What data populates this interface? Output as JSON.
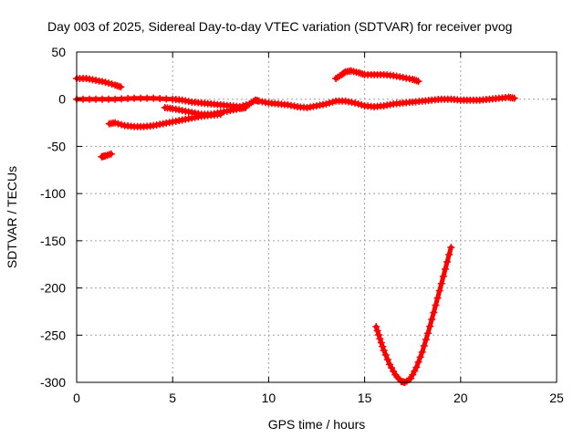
{
  "chart_data": {
    "type": "scatter",
    "title": "Day 003 of 2025, Sidereal Day-to-day VTEC variation (SDTVAR) for receiver pvog",
    "xlabel": "GPS time / hours",
    "ylabel": "SDTVAR / TECUs",
    "xlim": [
      0,
      25
    ],
    "ylim": [
      -300,
      50
    ],
    "xticks": [
      0,
      5,
      10,
      15,
      20,
      25
    ],
    "yticks": [
      50,
      0,
      -50,
      -100,
      -150,
      -200,
      -250,
      -300
    ],
    "grid": true,
    "marker": "plus",
    "colors": {
      "points": "#ff0000",
      "grid": "#a0a0a0",
      "axes": "#000000"
    },
    "segments": [
      [
        [
          0.0,
          22
        ],
        [
          0.5,
          22
        ],
        [
          1.0,
          20
        ],
        [
          1.5,
          18
        ],
        [
          2.0,
          15
        ],
        [
          2.3,
          13
        ]
      ],
      [
        [
          0.0,
          0
        ],
        [
          1.0,
          0
        ],
        [
          2.0,
          0
        ],
        [
          3.0,
          1
        ],
        [
          4.0,
          1
        ],
        [
          5.0,
          0
        ],
        [
          5.5,
          -1
        ],
        [
          6.0,
          -3
        ],
        [
          6.5,
          -4
        ],
        [
          7.0,
          -5
        ],
        [
          7.5,
          -6
        ],
        [
          8.0,
          -7
        ],
        [
          8.5,
          -8
        ],
        [
          9.0,
          -5
        ],
        [
          9.3,
          -1
        ],
        [
          9.5,
          -2
        ],
        [
          10.0,
          -4
        ],
        [
          10.5,
          -5
        ],
        [
          11.0,
          -6
        ],
        [
          11.5,
          -8
        ],
        [
          12.0,
          -9
        ],
        [
          12.5,
          -7
        ],
        [
          13.0,
          -5
        ],
        [
          13.5,
          -2
        ],
        [
          14.0,
          -2
        ],
        [
          14.5,
          -4
        ],
        [
          15.0,
          -7
        ],
        [
          15.5,
          -8
        ],
        [
          16.0,
          -7
        ],
        [
          16.5,
          -5
        ],
        [
          17.0,
          -4
        ],
        [
          17.5,
          -3
        ],
        [
          18.0,
          -2
        ],
        [
          18.5,
          -1
        ],
        [
          19.0,
          0
        ],
        [
          19.5,
          0
        ],
        [
          20.0,
          -1
        ],
        [
          20.5,
          -1
        ],
        [
          21.0,
          -1
        ],
        [
          21.5,
          0
        ],
        [
          22.0,
          1
        ],
        [
          22.5,
          2
        ],
        [
          22.8,
          1
        ]
      ],
      [
        [
          1.7,
          -26
        ],
        [
          2.0,
          -25
        ],
        [
          2.5,
          -28
        ],
        [
          3.0,
          -29
        ],
        [
          3.5,
          -29
        ],
        [
          4.0,
          -28
        ],
        [
          4.5,
          -26
        ],
        [
          5.0,
          -24
        ],
        [
          5.5,
          -22
        ],
        [
          6.0,
          -20
        ],
        [
          6.5,
          -18
        ],
        [
          7.0,
          -17
        ],
        [
          7.5,
          -16
        ]
      ],
      [
        [
          4.6,
          -9
        ],
        [
          5.0,
          -10
        ],
        [
          5.5,
          -12
        ],
        [
          6.0,
          -14
        ],
        [
          6.5,
          -16
        ],
        [
          7.0,
          -16
        ],
        [
          7.5,
          -14
        ],
        [
          8.0,
          -12
        ],
        [
          8.5,
          -10
        ],
        [
          8.8,
          -9
        ]
      ],
      [
        [
          1.3,
          -61
        ],
        [
          1.5,
          -60
        ],
        [
          1.8,
          -58
        ]
      ],
      [
        [
          13.5,
          22
        ],
        [
          13.8,
          26
        ],
        [
          14.0,
          29
        ],
        [
          14.3,
          30
        ],
        [
          14.7,
          28
        ],
        [
          15.0,
          26
        ],
        [
          15.5,
          26
        ],
        [
          16.0,
          26
        ],
        [
          16.5,
          25
        ],
        [
          17.0,
          23
        ],
        [
          17.5,
          21
        ],
        [
          17.8,
          19
        ]
      ],
      [
        [
          15.6,
          -241
        ],
        [
          15.8,
          -254
        ],
        [
          16.0,
          -266
        ],
        [
          16.3,
          -281
        ],
        [
          16.6,
          -292
        ],
        [
          16.9,
          -299
        ],
        [
          17.1,
          -300
        ],
        [
          17.4,
          -296
        ],
        [
          17.7,
          -284
        ],
        [
          18.0,
          -268
        ],
        [
          18.3,
          -248
        ],
        [
          18.6,
          -226
        ],
        [
          18.9,
          -203
        ],
        [
          19.2,
          -180
        ],
        [
          19.5,
          -157
        ]
      ]
    ]
  }
}
